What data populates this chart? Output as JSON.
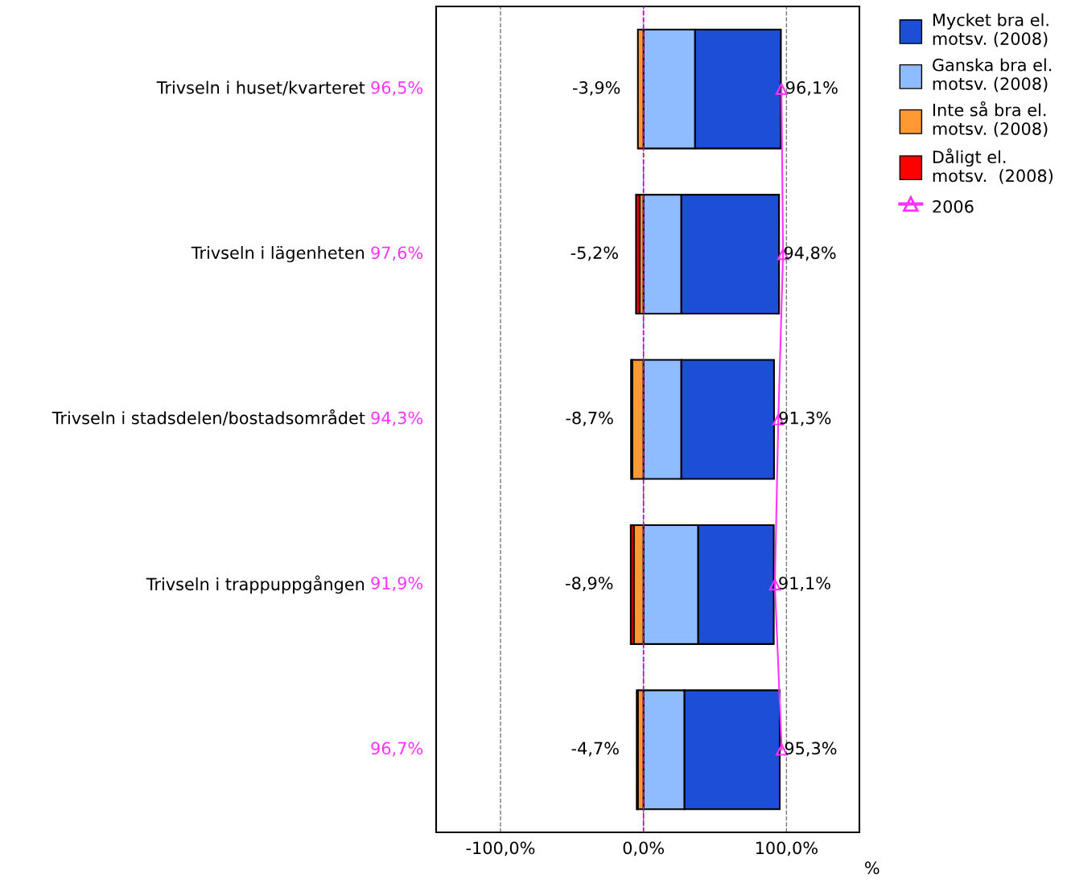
{
  "chart_data": {
    "type": "bar",
    "orientation": "horizontal",
    "stacked": true,
    "categories": [
      "Trivseln i huset/kvarteret",
      "Trivseln i lägenheten",
      "Trivseln i stadsdelen/bostadsområdet",
      "Trivseln i trappuppgången",
      null
    ],
    "xlabel": "%",
    "xlim": [
      -145,
      151
    ],
    "xticks": [
      {
        "value": -100,
        "label": "-100,0%"
      },
      {
        "value": 0,
        "label": "0,0%"
      },
      {
        "value": 100,
        "label": "100,0%"
      }
    ],
    "grid": "x",
    "legend": "top right",
    "totals": [
      [
        "-3,9%",
        "96,1%"
      ],
      [
        "-5,2%",
        "94,8%"
      ],
      [
        "-8,7%",
        "91,3%"
      ],
      [
        "-8,9%",
        "91,1%"
      ],
      [
        "-4,7%",
        "95,3%"
      ]
    ],
    "ref_lines": [
      {
        "axis": "x",
        "value": 0,
        "color": "#cc00cc",
        "line_style": "dashed"
      }
    ],
    "series": [
      {
        "name": "Ganska bra el.\nmotsv. (2008)",
        "color": "#8fbcff",
        "values": [
          36.1,
          26.5,
          26.5,
          38.3,
          28.7
        ]
      },
      {
        "name": "Mycket bra el.\nmotsv. (2008)",
        "color": "#1c4fd6",
        "values": [
          60.0,
          68.3,
          64.8,
          52.8,
          66.6
        ]
      },
      {
        "name": "Inte så bra el.\nmotsv. (2008)",
        "color": "#ff9933",
        "values": [
          -3.9,
          -2.7,
          -7.9,
          -6.8,
          -4.0
        ]
      },
      {
        "name": "Dåligt el.\nmotsv.  (2008)",
        "color": "#ff0000",
        "values": [
          null,
          -2.5,
          -0.8,
          -2.1,
          -0.7
        ]
      },
      {
        "name": "2006",
        "type": "line",
        "color": "#ff33ff",
        "marker": "triangle",
        "values": [
          96.5,
          97.6,
          94.3,
          91.9,
          96.7
        ],
        "value_labels": [
          "96,5%",
          "97,6%",
          "94,3%",
          "91,9%",
          "96,7%"
        ]
      }
    ]
  }
}
